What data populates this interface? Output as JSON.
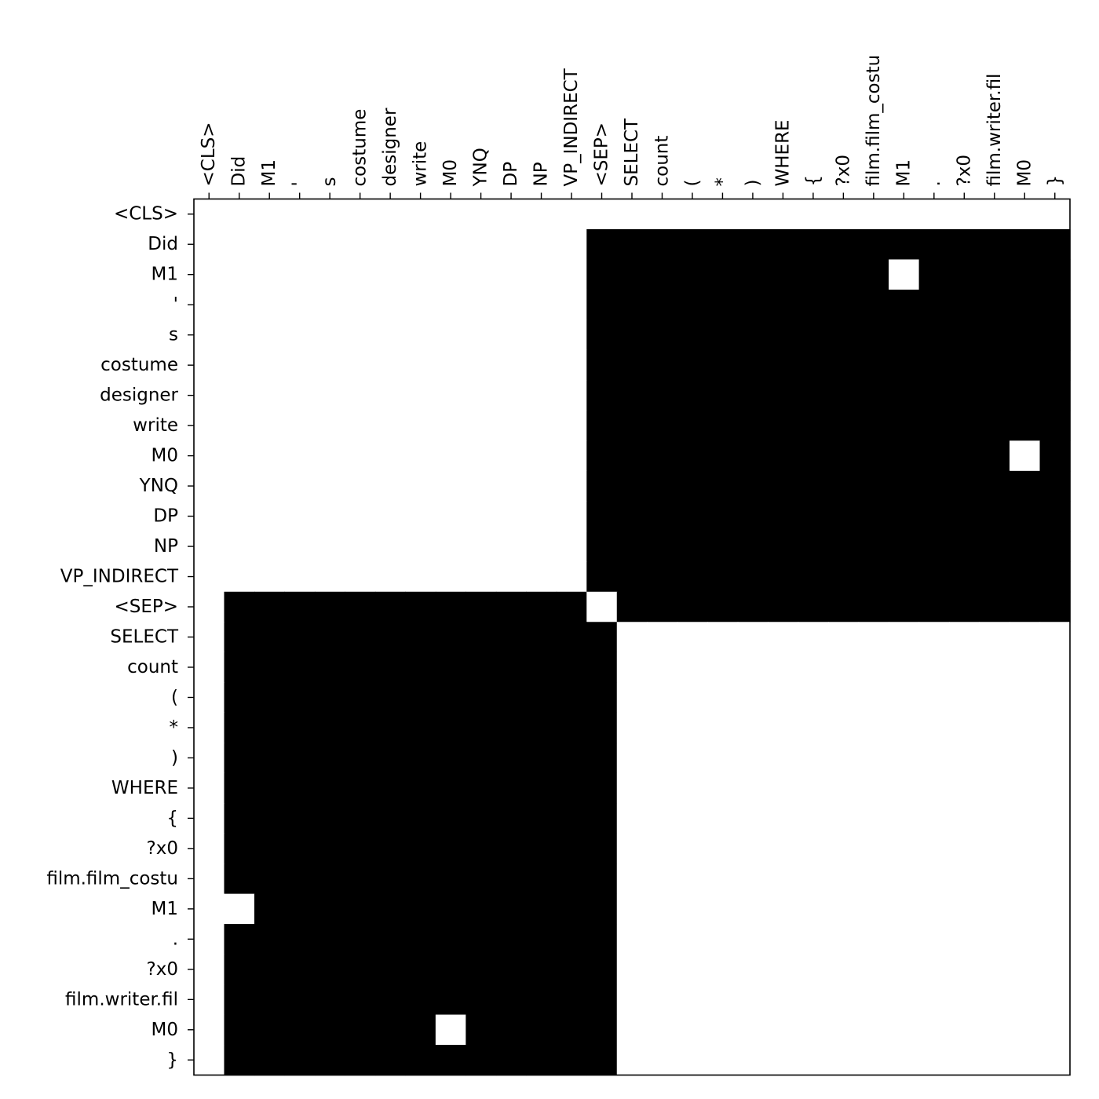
{
  "chart_data": {
    "type": "heatmap",
    "title": "",
    "xlabel": "",
    "ylabel": "",
    "colormap": "binary",
    "value_range": [
      0,
      1
    ],
    "x_labels": [
      "<CLS>",
      "Did",
      "M1",
      "'",
      "s",
      "costume",
      "designer",
      "write",
      "M0",
      "YNQ",
      "DP",
      "NP",
      "VP_INDIRECT",
      "<SEP>",
      "SELECT",
      "count",
      "(",
      "*",
      ")",
      "WHERE",
      "{",
      "?x0",
      "film.film_costu",
      "M1",
      ".",
      "?x0",
      "film.writer.fil",
      "M0",
      "}"
    ],
    "y_labels": [
      "<CLS>",
      "Did",
      "M1",
      "'",
      "s",
      "costume",
      "designer",
      "write",
      "M0",
      "YNQ",
      "DP",
      "NP",
      "VP_INDIRECT",
      "<SEP>",
      "SELECT",
      "count",
      "(",
      "*",
      ")",
      "WHERE",
      "{",
      "?x0",
      "film.film_costu",
      "M1",
      ".",
      "?x0",
      "film.writer.fil",
      "M0",
      "}"
    ],
    "values": [
      [
        0,
        0,
        0,
        0,
        0,
        0,
        0,
        0,
        0,
        0,
        0,
        0,
        0,
        0,
        0,
        0,
        0,
        0,
        0,
        0,
        0,
        0,
        0,
        0,
        0,
        0,
        0,
        0,
        0
      ],
      [
        0,
        0,
        0,
        0,
        0,
        0,
        0,
        0,
        0,
        0,
        0,
        0,
        0,
        1,
        1,
        1,
        1,
        1,
        1,
        1,
        1,
        1,
        1,
        1,
        1,
        1,
        1,
        1,
        1
      ],
      [
        0,
        0,
        0,
        0,
        0,
        0,
        0,
        0,
        0,
        0,
        0,
        0,
        0,
        1,
        1,
        1,
        1,
        1,
        1,
        1,
        1,
        1,
        1,
        0,
        1,
        1,
        1,
        1,
        1
      ],
      [
        0,
        0,
        0,
        0,
        0,
        0,
        0,
        0,
        0,
        0,
        0,
        0,
        0,
        1,
        1,
        1,
        1,
        1,
        1,
        1,
        1,
        1,
        1,
        1,
        1,
        1,
        1,
        1,
        1
      ],
      [
        0,
        0,
        0,
        0,
        0,
        0,
        0,
        0,
        0,
        0,
        0,
        0,
        0,
        1,
        1,
        1,
        1,
        1,
        1,
        1,
        1,
        1,
        1,
        1,
        1,
        1,
        1,
        1,
        1
      ],
      [
        0,
        0,
        0,
        0,
        0,
        0,
        0,
        0,
        0,
        0,
        0,
        0,
        0,
        1,
        1,
        1,
        1,
        1,
        1,
        1,
        1,
        1,
        1,
        1,
        1,
        1,
        1,
        1,
        1
      ],
      [
        0,
        0,
        0,
        0,
        0,
        0,
        0,
        0,
        0,
        0,
        0,
        0,
        0,
        1,
        1,
        1,
        1,
        1,
        1,
        1,
        1,
        1,
        1,
        1,
        1,
        1,
        1,
        1,
        1
      ],
      [
        0,
        0,
        0,
        0,
        0,
        0,
        0,
        0,
        0,
        0,
        0,
        0,
        0,
        1,
        1,
        1,
        1,
        1,
        1,
        1,
        1,
        1,
        1,
        1,
        1,
        1,
        1,
        1,
        1
      ],
      [
        0,
        0,
        0,
        0,
        0,
        0,
        0,
        0,
        0,
        0,
        0,
        0,
        0,
        1,
        1,
        1,
        1,
        1,
        1,
        1,
        1,
        1,
        1,
        1,
        1,
        1,
        1,
        0,
        1
      ],
      [
        0,
        0,
        0,
        0,
        0,
        0,
        0,
        0,
        0,
        0,
        0,
        0,
        0,
        1,
        1,
        1,
        1,
        1,
        1,
        1,
        1,
        1,
        1,
        1,
        1,
        1,
        1,
        1,
        1
      ],
      [
        0,
        0,
        0,
        0,
        0,
        0,
        0,
        0,
        0,
        0,
        0,
        0,
        0,
        1,
        1,
        1,
        1,
        1,
        1,
        1,
        1,
        1,
        1,
        1,
        1,
        1,
        1,
        1,
        1
      ],
      [
        0,
        0,
        0,
        0,
        0,
        0,
        0,
        0,
        0,
        0,
        0,
        0,
        0,
        1,
        1,
        1,
        1,
        1,
        1,
        1,
        1,
        1,
        1,
        1,
        1,
        1,
        1,
        1,
        1
      ],
      [
        0,
        0,
        0,
        0,
        0,
        0,
        0,
        0,
        0,
        0,
        0,
        0,
        0,
        1,
        1,
        1,
        1,
        1,
        1,
        1,
        1,
        1,
        1,
        1,
        1,
        1,
        1,
        1,
        1
      ],
      [
        0,
        1,
        1,
        1,
        1,
        1,
        1,
        1,
        1,
        1,
        1,
        1,
        1,
        0,
        1,
        1,
        1,
        1,
        1,
        1,
        1,
        1,
        1,
        1,
        1,
        1,
        1,
        1,
        1
      ],
      [
        0,
        1,
        1,
        1,
        1,
        1,
        1,
        1,
        1,
        1,
        1,
        1,
        1,
        1,
        0,
        0,
        0,
        0,
        0,
        0,
        0,
        0,
        0,
        0,
        0,
        0,
        0,
        0,
        0
      ],
      [
        0,
        1,
        1,
        1,
        1,
        1,
        1,
        1,
        1,
        1,
        1,
        1,
        1,
        1,
        0,
        0,
        0,
        0,
        0,
        0,
        0,
        0,
        0,
        0,
        0,
        0,
        0,
        0,
        0
      ],
      [
        0,
        1,
        1,
        1,
        1,
        1,
        1,
        1,
        1,
        1,
        1,
        1,
        1,
        1,
        0,
        0,
        0,
        0,
        0,
        0,
        0,
        0,
        0,
        0,
        0,
        0,
        0,
        0,
        0
      ],
      [
        0,
        1,
        1,
        1,
        1,
        1,
        1,
        1,
        1,
        1,
        1,
        1,
        1,
        1,
        0,
        0,
        0,
        0,
        0,
        0,
        0,
        0,
        0,
        0,
        0,
        0,
        0,
        0,
        0
      ],
      [
        0,
        1,
        1,
        1,
        1,
        1,
        1,
        1,
        1,
        1,
        1,
        1,
        1,
        1,
        0,
        0,
        0,
        0,
        0,
        0,
        0,
        0,
        0,
        0,
        0,
        0,
        0,
        0,
        0
      ],
      [
        0,
        1,
        1,
        1,
        1,
        1,
        1,
        1,
        1,
        1,
        1,
        1,
        1,
        1,
        0,
        0,
        0,
        0,
        0,
        0,
        0,
        0,
        0,
        0,
        0,
        0,
        0,
        0,
        0
      ],
      [
        0,
        1,
        1,
        1,
        1,
        1,
        1,
        1,
        1,
        1,
        1,
        1,
        1,
        1,
        0,
        0,
        0,
        0,
        0,
        0,
        0,
        0,
        0,
        0,
        0,
        0,
        0,
        0,
        0
      ],
      [
        0,
        1,
        1,
        1,
        1,
        1,
        1,
        1,
        1,
        1,
        1,
        1,
        1,
        1,
        0,
        0,
        0,
        0,
        0,
        0,
        0,
        0,
        0,
        0,
        0,
        0,
        0,
        0,
        0
      ],
      [
        0,
        1,
        1,
        1,
        1,
        1,
        1,
        1,
        1,
        1,
        1,
        1,
        1,
        1,
        0,
        0,
        0,
        0,
        0,
        0,
        0,
        0,
        0,
        0,
        0,
        0,
        0,
        0,
        0
      ],
      [
        0,
        0,
        1,
        1,
        1,
        1,
        1,
        1,
        1,
        1,
        1,
        1,
        1,
        1,
        0,
        0,
        0,
        0,
        0,
        0,
        0,
        0,
        0,
        0,
        0,
        0,
        0,
        0,
        0
      ],
      [
        0,
        1,
        1,
        1,
        1,
        1,
        1,
        1,
        1,
        1,
        1,
        1,
        1,
        1,
        0,
        0,
        0,
        0,
        0,
        0,
        0,
        0,
        0,
        0,
        0,
        0,
        0,
        0,
        0
      ],
      [
        0,
        1,
        1,
        1,
        1,
        1,
        1,
        1,
        1,
        1,
        1,
        1,
        1,
        1,
        0,
        0,
        0,
        0,
        0,
        0,
        0,
        0,
        0,
        0,
        0,
        0,
        0,
        0,
        0
      ],
      [
        0,
        1,
        1,
        1,
        1,
        1,
        1,
        1,
        1,
        1,
        1,
        1,
        1,
        1,
        0,
        0,
        0,
        0,
        0,
        0,
        0,
        0,
        0,
        0,
        0,
        0,
        0,
        0,
        0
      ],
      [
        0,
        1,
        1,
        1,
        1,
        1,
        1,
        1,
        0,
        1,
        1,
        1,
        1,
        1,
        0,
        0,
        0,
        0,
        0,
        0,
        0,
        0,
        0,
        0,
        0,
        0,
        0,
        0,
        0
      ],
      [
        0,
        1,
        1,
        1,
        1,
        1,
        1,
        1,
        1,
        1,
        1,
        1,
        1,
        1,
        0,
        0,
        0,
        0,
        0,
        0,
        0,
        0,
        0,
        0,
        0,
        0,
        0,
        0,
        0
      ]
    ],
    "colors": {
      "on": "#000000",
      "off": "#ffffff"
    },
    "grid": false,
    "legend": "none",
    "x_tick_position": "top"
  }
}
